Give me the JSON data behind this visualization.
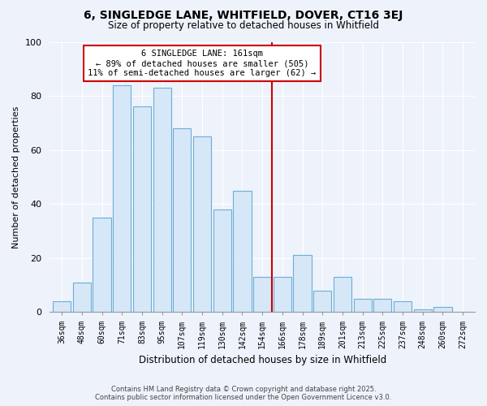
{
  "title": "6, SINGLEDGE LANE, WHITFIELD, DOVER, CT16 3EJ",
  "subtitle": "Size of property relative to detached houses in Whitfield",
  "xlabel": "Distribution of detached houses by size in Whitfield",
  "ylabel": "Number of detached properties",
  "bar_labels": [
    "36sqm",
    "48sqm",
    "60sqm",
    "71sqm",
    "83sqm",
    "95sqm",
    "107sqm",
    "119sqm",
    "130sqm",
    "142sqm",
    "154sqm",
    "166sqm",
    "178sqm",
    "189sqm",
    "201sqm",
    "213sqm",
    "225sqm",
    "237sqm",
    "248sqm",
    "260sqm",
    "272sqm"
  ],
  "bar_heights": [
    4,
    11,
    35,
    84,
    76,
    83,
    68,
    65,
    38,
    45,
    13,
    13,
    21,
    8,
    13,
    5,
    5,
    4,
    1,
    2,
    0
  ],
  "bar_color": "#d6e8f7",
  "bar_edge_color": "#6aaed6",
  "vline_x_index": 10.5,
  "annotation_line1": "6 SINGLEDGE LANE: 161sqm",
  "annotation_line2": "← 89% of detached houses are smaller (505)",
  "annotation_line3": "11% of semi-detached houses are larger (62) →",
  "annotation_box_color": "#ffffff",
  "annotation_box_edge": "#cc0000",
  "vline_color": "#cc0000",
  "ylim": [
    0,
    100
  ],
  "yticks": [
    0,
    20,
    40,
    60,
    80,
    100
  ],
  "background_color": "#eef2fb",
  "grid_color": "#ffffff",
  "footer_line1": "Contains HM Land Registry data © Crown copyright and database right 2025.",
  "footer_line2": "Contains public sector information licensed under the Open Government Licence v3.0."
}
